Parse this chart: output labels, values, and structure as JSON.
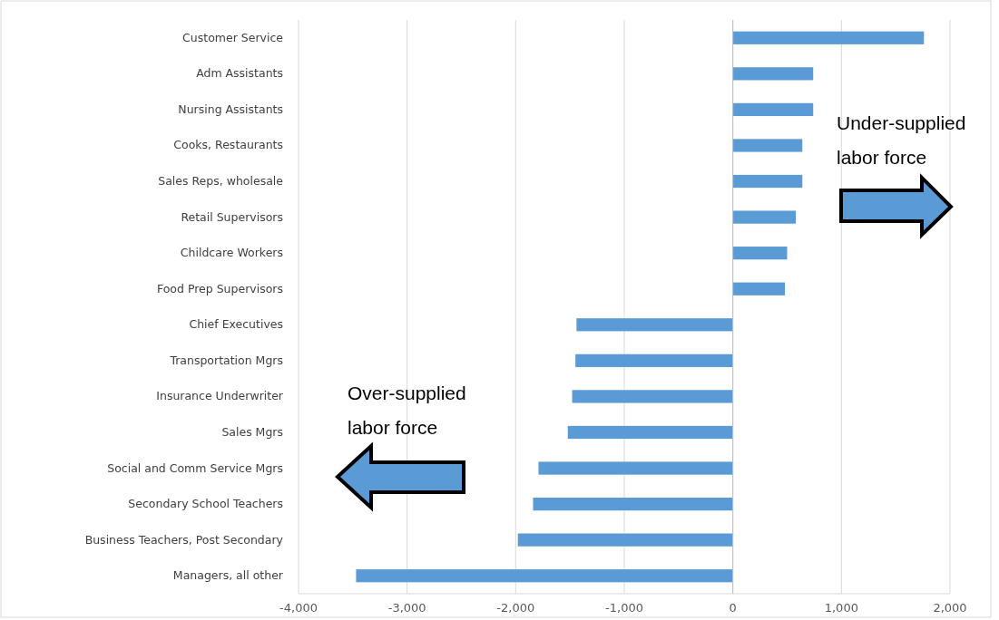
{
  "chart_data": {
    "type": "bar",
    "orientation": "horizontal",
    "categories": [
      "Customer Service",
      "Adm Assistants",
      "Nursing Assistants",
      "Cooks, Restaurants",
      "Sales Reps, wholesale",
      "Retail Supervisors",
      "Childcare Workers",
      "Food Prep Supervisors",
      "Chief Executives",
      "Transportation Mgrs",
      "Insurance Underwriter",
      "Sales Mgrs",
      "Social and Comm Service Mgrs",
      "Secondary School Teachers",
      "Business Teachers, Post Secondary",
      "Managers, all other"
    ],
    "values": [
      1760,
      740,
      740,
      640,
      640,
      580,
      500,
      480,
      -1440,
      -1450,
      -1480,
      -1520,
      -1790,
      -1840,
      -1980,
      -3470
    ],
    "color": "#5b9bd5",
    "xlim": [
      -4000,
      2000
    ],
    "xticks": [
      {
        "value": -4000,
        "label": "-4,000"
      },
      {
        "value": -3000,
        "label": "-3,000"
      },
      {
        "value": -2000,
        "label": "-2,000"
      },
      {
        "value": -1000,
        "label": "-1,000"
      },
      0,
      {
        "value": 1000,
        "label": "1,000"
      },
      {
        "value": 2000,
        "label": "2,000"
      }
    ],
    "grid": "x",
    "annotations": [
      "Under-supplied labor force",
      "Over-supplied labor force"
    ]
  }
}
